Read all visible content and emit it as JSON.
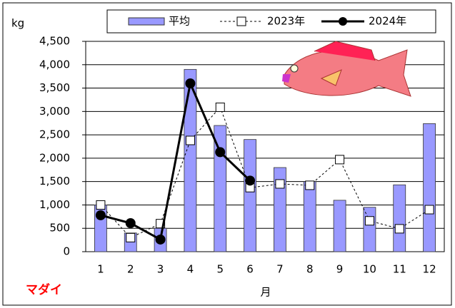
{
  "chart_data": {
    "type": "bar-line",
    "y_label": "kg",
    "x_label": "月",
    "annotation": "マダイ",
    "categories": [
      "1",
      "2",
      "3",
      "4",
      "5",
      "6",
      "7",
      "8",
      "9",
      "10",
      "11",
      "12"
    ],
    "series": [
      {
        "name": "平均",
        "type": "bar",
        "color": "#9999ff",
        "values": [
          1000,
          400,
          500,
          3900,
          2700,
          2400,
          1800,
          1500,
          1100,
          950,
          1430,
          2740
        ]
      },
      {
        "name": "2023年",
        "type": "line",
        "style": "dashed",
        "marker": "square",
        "color": "#000000",
        "values": [
          1000,
          300,
          600,
          2380,
          3090,
          1370,
          1450,
          1420,
          1970,
          660,
          490,
          900
        ]
      },
      {
        "name": "2024年",
        "type": "line",
        "style": "solid",
        "marker": "circle",
        "color": "#000000",
        "values": [
          780,
          610,
          260,
          3600,
          2130,
          1520,
          null,
          null,
          null,
          null,
          null,
          null
        ]
      }
    ],
    "ylim": [
      0,
      4500
    ],
    "yticks": [
      0,
      500,
      {
        "value": 1000,
        "label": "1,000"
      },
      {
        "value": 1500,
        "label": "1,500"
      },
      {
        "value": 2000,
        "label": "2,000"
      },
      {
        "value": 2500,
        "label": "2,500"
      },
      {
        "value": 3000,
        "label": "3,000"
      },
      {
        "value": 3500,
        "label": "3,500"
      },
      {
        "value": 4000,
        "label": "4,000"
      },
      {
        "value": 4500,
        "label": "4,500"
      }
    ],
    "grid": true
  }
}
